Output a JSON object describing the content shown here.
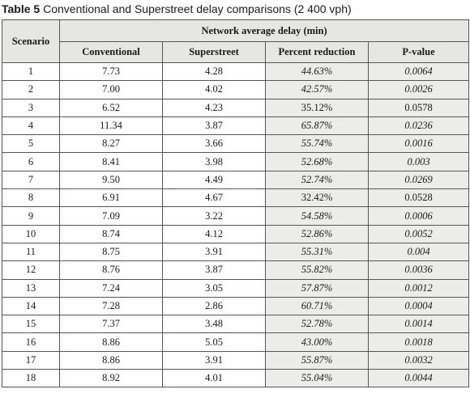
{
  "caption": {
    "label": "Table 5",
    "text": "Conventional and Superstreet delay comparisons (2 400 vph)"
  },
  "header": {
    "scenario": "Scenario",
    "group": "Network average delay (min)",
    "conventional": "Conventional",
    "superstreet": "Superstreet",
    "percent_reduction": "Percent reduction",
    "p_value": "P-value"
  },
  "rows": [
    {
      "scenario": "1",
      "conventional": "7.73",
      "superstreet": "4.28",
      "percent_reduction": "44.63%",
      "p_value": "0.0064",
      "significant": true
    },
    {
      "scenario": "2",
      "conventional": "7.00",
      "superstreet": "4.02",
      "percent_reduction": "42.57%",
      "p_value": "0.0026",
      "significant": true
    },
    {
      "scenario": "3",
      "conventional": "6.52",
      "superstreet": "4.23",
      "percent_reduction": "35.12%",
      "p_value": "0.0578",
      "significant": false
    },
    {
      "scenario": "4",
      "conventional": "11.34",
      "superstreet": "3.87",
      "percent_reduction": "65.87%",
      "p_value": "0.0236",
      "significant": true
    },
    {
      "scenario": "5",
      "conventional": "8.27",
      "superstreet": "3.66",
      "percent_reduction": "55.74%",
      "p_value": "0.0016",
      "significant": true
    },
    {
      "scenario": "6",
      "conventional": "8.41",
      "superstreet": "3.98",
      "percent_reduction": "52.68%",
      "p_value": "0.003",
      "significant": true
    },
    {
      "scenario": "7",
      "conventional": "9.50",
      "superstreet": "4.49",
      "percent_reduction": "52.74%",
      "p_value": "0.0269",
      "significant": true
    },
    {
      "scenario": "8",
      "conventional": "6.91",
      "superstreet": "4.67",
      "percent_reduction": "32.42%",
      "p_value": "0.0528",
      "significant": false
    },
    {
      "scenario": "9",
      "conventional": "7.09",
      "superstreet": "3.22",
      "percent_reduction": "54.58%",
      "p_value": "0.0006",
      "significant": true
    },
    {
      "scenario": "10",
      "conventional": "8.74",
      "superstreet": "4.12",
      "percent_reduction": "52.86%",
      "p_value": "0.0052",
      "significant": true
    },
    {
      "scenario": "11",
      "conventional": "8.75",
      "superstreet": "3.91",
      "percent_reduction": "55.31%",
      "p_value": "0.004",
      "significant": true
    },
    {
      "scenario": "12",
      "conventional": "8.76",
      "superstreet": "3.87",
      "percent_reduction": "55.82%",
      "p_value": "0.0036",
      "significant": true
    },
    {
      "scenario": "13",
      "conventional": "7.24",
      "superstreet": "3.05",
      "percent_reduction": "57.87%",
      "p_value": "0.0012",
      "significant": true
    },
    {
      "scenario": "14",
      "conventional": "7.28",
      "superstreet": "2.86",
      "percent_reduction": "60.71%",
      "p_value": "0.0004",
      "significant": true
    },
    {
      "scenario": "15",
      "conventional": "7.37",
      "superstreet": "3.48",
      "percent_reduction": "52.78%",
      "p_value": "0.0014",
      "significant": true
    },
    {
      "scenario": "16",
      "conventional": "8.86",
      "superstreet": "5.05",
      "percent_reduction": "43.00%",
      "p_value": "0.0018",
      "significant": true
    },
    {
      "scenario": "17",
      "conventional": "8.86",
      "superstreet": "3.91",
      "percent_reduction": "55.87%",
      "p_value": "0.0032",
      "significant": true
    },
    {
      "scenario": "18",
      "conventional": "8.92",
      "superstreet": "4.01",
      "percent_reduction": "55.04%",
      "p_value": "0.0044",
      "significant": true
    }
  ],
  "colors": {
    "header_bg": "#e6e6e4",
    "shade_bg": "#ececea",
    "border": "#555555"
  }
}
